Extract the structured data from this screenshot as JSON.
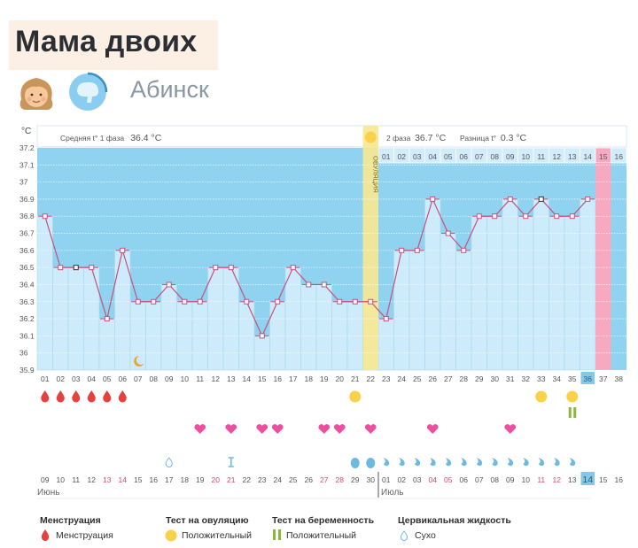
{
  "profile": {
    "name": "Мама двоих",
    "city": "Абинск",
    "avatar_icon": "girl-avatar-icon",
    "status_icon": "brain-ring-icon"
  },
  "chart_header": {
    "unit": "°C",
    "phase1_label": "Средняя t° 1 фаза",
    "phase1_value": "36.4 °C",
    "phase2_label": "2 фаза",
    "phase2_value": "36.7 °C",
    "diff_label": "Разница t°",
    "diff_value": "0.3 °C",
    "ovulation_label": "ОВУЛЯЦИЯ",
    "phase2_days": [
      "01",
      "02",
      "03",
      "04",
      "05",
      "06",
      "07",
      "08",
      "09",
      "10",
      "11",
      "12",
      "13",
      "14",
      "15",
      "16"
    ]
  },
  "colors": {
    "above": "#8fd3f0",
    "below": "#cdebfa",
    "line": "#c9507d",
    "ovulation": "#f7e891",
    "period_pred": "#f7a9c1",
    "today": "#86c8e4",
    "blood": "#e5413f",
    "heart": "#ec4fa0",
    "test_yellow": "#f9d24a",
    "test_green": "#8cb83a",
    "fluid": "#6db9e2"
  },
  "chart_data": {
    "type": "line",
    "title": "Basal body temperature",
    "ylabel": "°C",
    "ylim": [
      35.9,
      37.2
    ],
    "yticks": [
      "37.2",
      "37.1",
      "37",
      "36.9",
      "36.8",
      "36.7",
      "36.6",
      "36.5",
      "36.4",
      "36.3",
      "36.2",
      "36.1",
      "36",
      "35.9"
    ],
    "x": [
      "01",
      "02",
      "03",
      "04",
      "05",
      "06",
      "07",
      "08",
      "09",
      "10",
      "11",
      "12",
      "13",
      "14",
      "15",
      "16",
      "17",
      "18",
      "19",
      "20",
      "21",
      "22",
      "23",
      "24",
      "25",
      "26",
      "27",
      "28",
      "29",
      "30",
      "31",
      "32",
      "33",
      "34",
      "35",
      "36",
      "37",
      "38"
    ],
    "temperatures": [
      36.8,
      36.5,
      36.5,
      36.5,
      36.2,
      36.6,
      36.3,
      36.3,
      36.4,
      36.3,
      36.3,
      36.5,
      36.5,
      36.3,
      36.1,
      36.3,
      36.5,
      36.4,
      36.4,
      36.3,
      36.3,
      36.3,
      36.2,
      36.6,
      36.6,
      36.9,
      36.7,
      36.6,
      36.8,
      36.8,
      36.9,
      36.8,
      36.9,
      36.8,
      36.8,
      36.9,
      null,
      null
    ],
    "ovulation_day": "22",
    "today_cycle_day": "36",
    "predicted_period_day": "37",
    "dates": [
      "09",
      "10",
      "11",
      "12",
      "13",
      "14",
      "15",
      "16",
      "17",
      "18",
      "19",
      "20",
      "21",
      "22",
      "23",
      "24",
      "25",
      "26",
      "27",
      "28",
      "29",
      "30",
      "01",
      "02",
      "03",
      "04",
      "05",
      "06",
      "07",
      "08",
      "09",
      "10",
      "11",
      "12",
      "13",
      "14",
      "15",
      "16"
    ],
    "red_dates_idx": [
      4,
      5,
      11,
      12,
      18,
      19,
      25,
      26,
      32,
      33
    ],
    "months": [
      "Июнь",
      "Июль"
    ],
    "menstruation_days": [
      1,
      2,
      3,
      4,
      5,
      6
    ],
    "ovulation_test_positive_days": [
      21,
      33,
      35
    ],
    "pregnancy_test_positive_days": [
      35
    ],
    "intercourse_days": [
      11,
      13,
      15,
      16,
      19,
      20,
      22,
      26,
      31
    ],
    "moon_day": 7,
    "fluid_dry_days": [
      9
    ],
    "fluid_sticky_days": [
      13
    ],
    "fluid_creamy_days": [
      21,
      22
    ],
    "fluid_watery_days": [
      23,
      24,
      25,
      26,
      27,
      28,
      29,
      30,
      31,
      32,
      33,
      34,
      35
    ]
  },
  "legend": {
    "menstruation_title": "Менструация",
    "menstruation_item": "Менструация",
    "ovulation_test_title": "Тест на овуляцию",
    "ovulation_test_item": "Положительный",
    "pregnancy_test_title": "Тест на беременность",
    "pregnancy_test_item": "Положительный",
    "fluid_title": "Цервикальная жидкость",
    "fluid_item": "Сухо"
  }
}
